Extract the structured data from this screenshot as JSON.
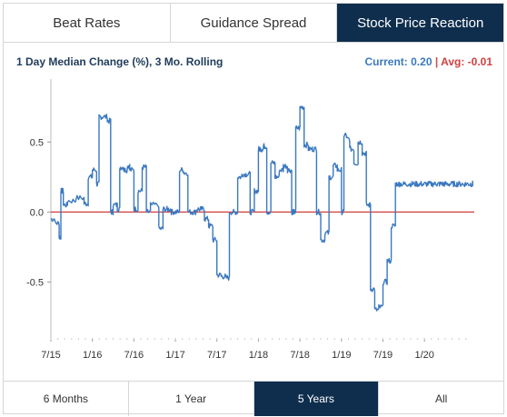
{
  "tabs": [
    {
      "label": "Beat Rates"
    },
    {
      "label": "Guidance Spread"
    },
    {
      "label": "Stock Price Reaction"
    }
  ],
  "active_tab": 2,
  "header": {
    "subtitle": "1 Day Median Change (%), 3 Mo. Rolling",
    "current_text": "Current: 0.20",
    "separator": "|",
    "avg_text": "Avg: -0.01"
  },
  "colors": {
    "accent": "#0f2e4d",
    "line": "#3a78c0",
    "zero_line": "#d33c3c"
  },
  "range_buttons": [
    {
      "label": "6 Months"
    },
    {
      "label": "1 Year"
    },
    {
      "label": "5 Years"
    },
    {
      "label": "All"
    }
  ],
  "active_range": 2,
  "chart_data": {
    "type": "line",
    "title": "1 Day Median Change (%), 3 Mo. Rolling",
    "xlabel": "",
    "ylabel": "",
    "x_tick_labels": [
      "7/15",
      "1/16",
      "7/16",
      "1/17",
      "7/17",
      "1/18",
      "7/18",
      "1/19",
      "7/19",
      "1/20"
    ],
    "y_tick_labels": [
      "0.5",
      "0.0",
      "-0.5"
    ],
    "y_ticks": [
      0.5,
      0.0,
      -0.5
    ],
    "ylim": [
      -0.9,
      0.95
    ],
    "xlim": [
      2015.5,
      2020.6
    ],
    "grid": false,
    "reference_line": 0.0,
    "series": [
      {
        "x": [
          2015.5,
          2015.55,
          2015.6,
          2015.62,
          2015.65,
          2015.7,
          2015.8,
          2015.9,
          2015.95,
          2016.0,
          2016.05,
          2016.08,
          2016.12,
          2016.18,
          2016.22,
          2016.25,
          2016.3,
          2016.33,
          2016.38,
          2016.42,
          2016.45,
          2016.5,
          2016.55,
          2016.6,
          2016.65,
          2016.7,
          2016.8,
          2016.85,
          2016.9,
          2016.95,
          2017.0,
          2017.05,
          2017.1,
          2017.15,
          2017.2,
          2017.25,
          2017.3,
          2017.35,
          2017.4,
          2017.45,
          2017.5,
          2017.55,
          2017.6,
          2017.65,
          2017.7,
          2017.75,
          2017.8,
          2017.85,
          2017.9,
          2017.95,
          2018.0,
          2018.03,
          2018.06,
          2018.1,
          2018.15,
          2018.2,
          2018.25,
          2018.3,
          2018.35,
          2018.4,
          2018.42,
          2018.45,
          2018.5,
          2018.55,
          2018.6,
          2018.65,
          2018.7,
          2018.75,
          2018.8,
          2018.85,
          2018.9,
          2018.95,
          2019.0,
          2019.03,
          2019.06,
          2019.1,
          2019.15,
          2019.2,
          2019.25,
          2019.3,
          2019.35,
          2019.4,
          2019.45,
          2019.5,
          2019.55,
          2019.6,
          2019.65,
          2019.7,
          2019.75,
          2019.8,
          2019.85,
          2019.9,
          2019.95,
          2020.0,
          2020.05,
          2020.1,
          2020.15,
          2020.18,
          2020.22,
          2020.25,
          2020.3,
          2020.35,
          2020.4,
          2020.45,
          2020.5,
          2020.55,
          2020.58
        ],
        "values": [
          -0.05,
          -0.08,
          -0.18,
          0.15,
          0.05,
          0.08,
          0.1,
          0.06,
          0.25,
          0.3,
          0.2,
          0.68,
          0.68,
          0.65,
          0.0,
          0.05,
          0.02,
          0.32,
          0.3,
          0.33,
          0.3,
          0.02,
          0.15,
          0.32,
          0.0,
          0.05,
          -0.12,
          0.02,
          0.02,
          0.0,
          0.0,
          0.3,
          0.28,
          0.0,
          0.0,
          0.02,
          0.02,
          -0.05,
          -0.1,
          -0.2,
          -0.45,
          -0.46,
          -0.47,
          0.0,
          0.0,
          0.25,
          0.27,
          0.27,
          0.0,
          0.15,
          0.45,
          0.45,
          0.47,
          0.0,
          0.35,
          0.25,
          0.3,
          0.33,
          0.3,
          0.0,
          0.0,
          0.6,
          0.75,
          0.48,
          0.45,
          0.45,
          0.0,
          -0.2,
          -0.15,
          0.25,
          0.33,
          0.3,
          0.0,
          0.55,
          0.52,
          0.45,
          0.35,
          0.5,
          0.42,
          0.05,
          -0.55,
          -0.7,
          -0.68,
          -0.5,
          -0.35,
          -0.1,
          0.2,
          0.2,
          0.2,
          0.2,
          0.2,
          0.2,
          0.2,
          0.2,
          0.2,
          0.2,
          0.2,
          0.2,
          0.2,
          0.2,
          0.2,
          0.2,
          0.2,
          0.2,
          0.2,
          0.2,
          0.2
        ]
      }
    ]
  }
}
